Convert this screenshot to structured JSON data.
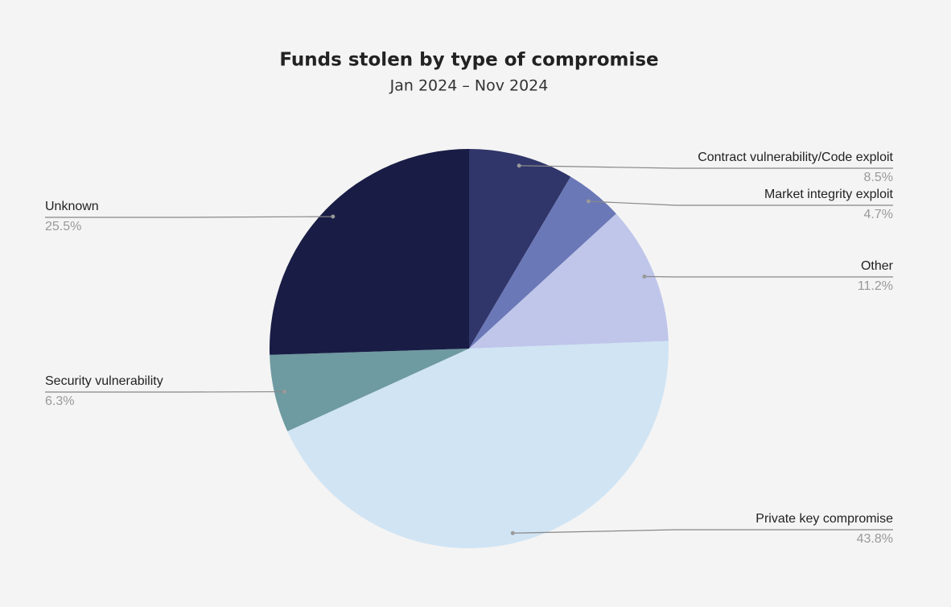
{
  "chart_data": {
    "type": "pie",
    "title": "Funds stolen by type of compromise",
    "subtitle": "Jan 2024 – Nov 2024",
    "categories": [
      "Contract vulnerability/Code exploit",
      "Market integrity exploit",
      "Other",
      "Private key compromise",
      "Security vulnerability",
      "Unknown"
    ],
    "values": [
      8.5,
      4.7,
      11.2,
      43.8,
      6.3,
      25.5
    ],
    "value_labels": [
      "8.5%",
      "4.7%",
      "11.2%",
      "43.8%",
      "6.3%",
      "25.5%"
    ],
    "colors": [
      "#30356a",
      "#6b78b7",
      "#bfc6ea",
      "#d0e4f4",
      "#6e9aa1",
      "#191d45"
    ]
  }
}
